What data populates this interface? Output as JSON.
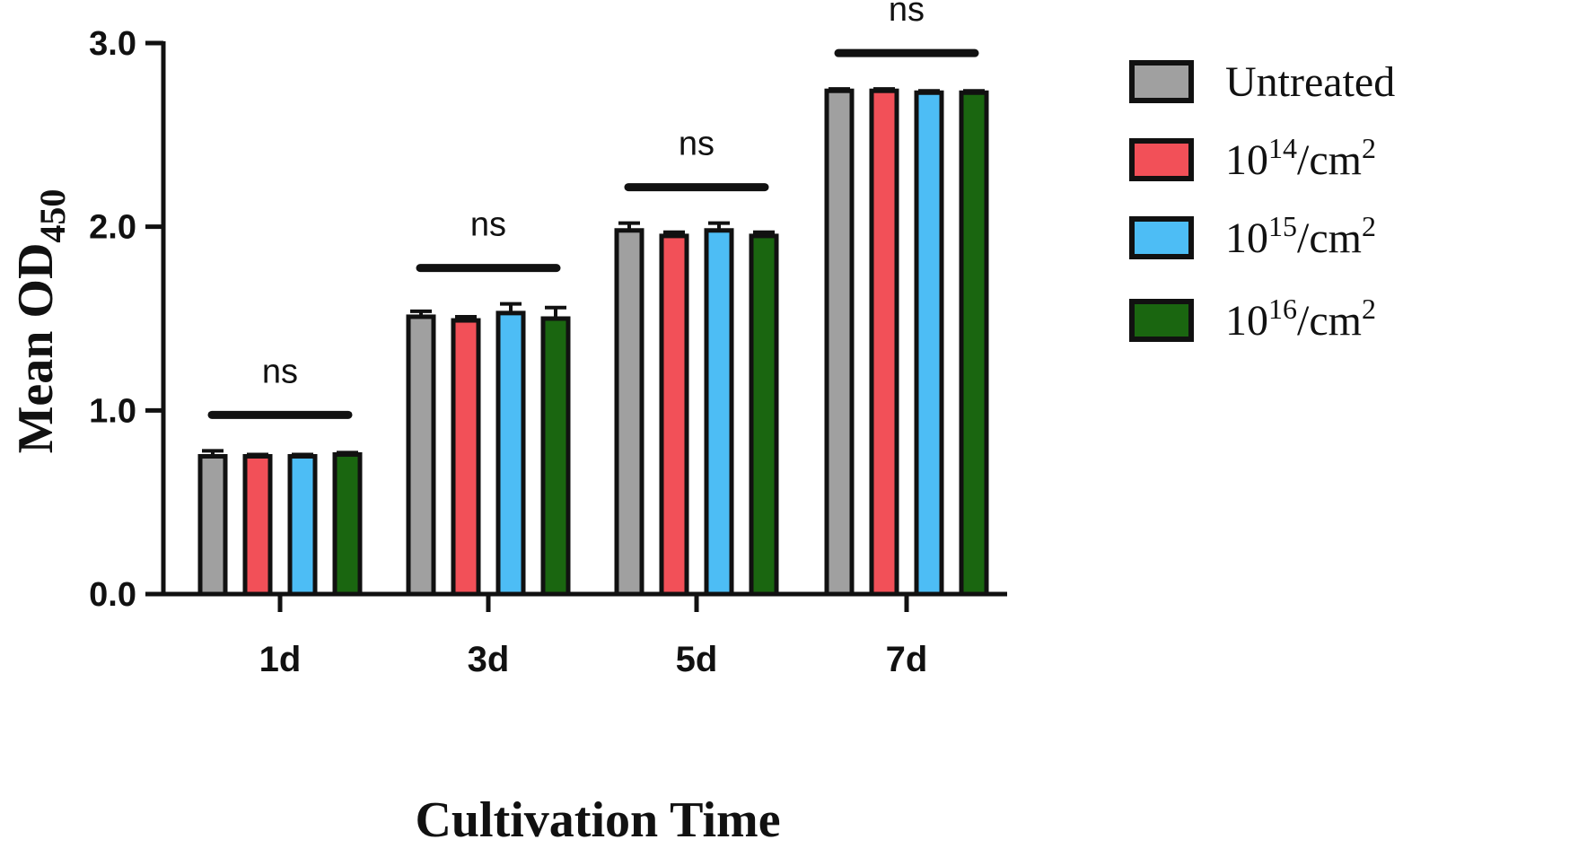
{
  "chart_data": {
    "type": "bar",
    "title": "",
    "xlabel": "Cultivation Time",
    "ylabel": {
      "main": "Mean OD",
      "subscript": "450"
    },
    "ylim": [
      0,
      3.0
    ],
    "yticks": [
      "0.0",
      "1.0",
      "2.0",
      "3.0"
    ],
    "ytick_values": [
      0,
      1,
      2,
      3
    ],
    "categories": [
      "1d",
      "3d",
      "5d",
      "7d"
    ],
    "series": [
      {
        "name": "Untreated",
        "color": "#a0a0a0",
        "values": [
          0.75,
          1.51,
          1.98,
          2.74
        ],
        "errors": [
          0.03,
          0.03,
          0.04,
          0.01
        ]
      },
      {
        "name": "10^14/cm^2",
        "color": "#f25058",
        "values": [
          0.75,
          1.49,
          1.95,
          2.74
        ],
        "errors": [
          0.01,
          0.02,
          0.02,
          0.01
        ]
      },
      {
        "name": "10^15/cm^2",
        "color": "#4dbdf5",
        "values": [
          0.75,
          1.53,
          1.98,
          2.73
        ],
        "errors": [
          0.01,
          0.05,
          0.04,
          0.01
        ]
      },
      {
        "name": "10^16/cm^2",
        "color": "#1a6610",
        "values": [
          0.76,
          1.5,
          1.95,
          2.73
        ],
        "errors": [
          0.01,
          0.06,
          0.02,
          0.01
        ]
      }
    ],
    "legend_entries": [
      {
        "base": "Untreated",
        "exp": "",
        "unit": "",
        "unit_exp": ""
      },
      {
        "base": "10",
        "exp": "14",
        "unit": "/cm",
        "unit_exp": "2"
      },
      {
        "base": "10",
        "exp": "15",
        "unit": "/cm",
        "unit_exp": "2"
      },
      {
        "base": "10",
        "exp": "16",
        "unit": "/cm",
        "unit_exp": "2"
      }
    ],
    "annotations": [
      "ns",
      "ns",
      "ns",
      "ns"
    ],
    "legend_position": "right"
  }
}
